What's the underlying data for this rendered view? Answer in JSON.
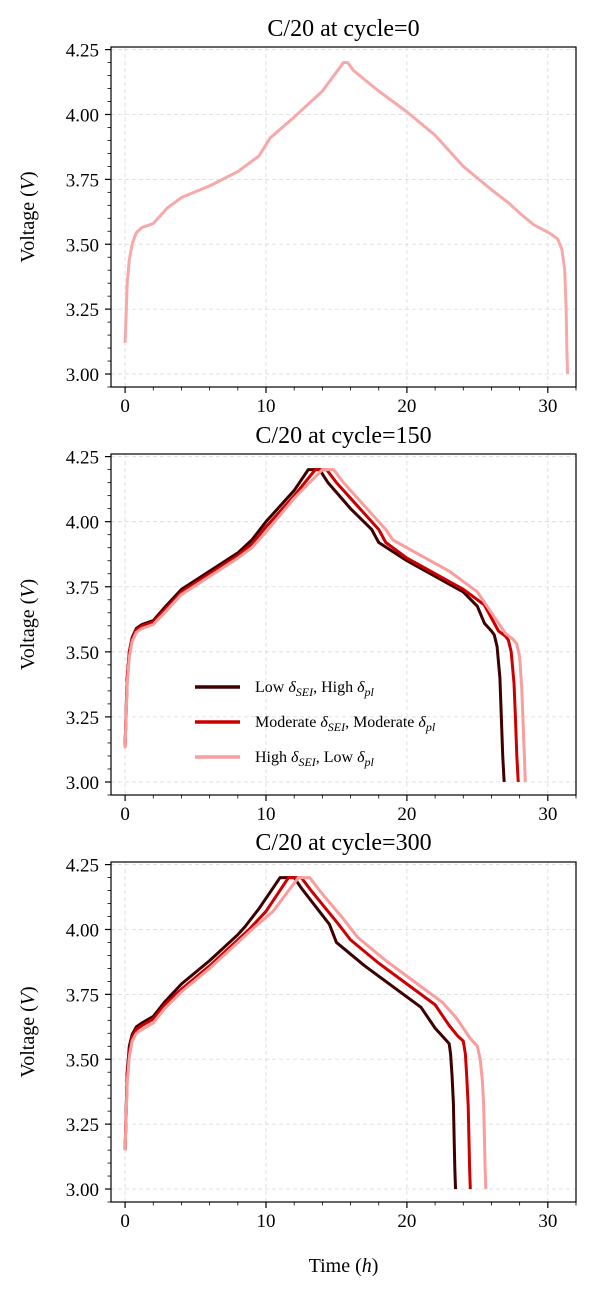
{
  "chart_data": [
    {
      "type": "line",
      "title": "C/20 at cycle=0",
      "xlabel": "",
      "ylabel": "Voltage (V)",
      "xlim": [
        -1,
        32
      ],
      "ylim": [
        2.95,
        4.26
      ],
      "xticks": [
        0,
        10,
        20,
        30
      ],
      "yticks": [
        3.0,
        3.25,
        3.5,
        3.75,
        4.0,
        4.25
      ],
      "ytick_labels": [
        "3.00",
        "3.25",
        "3.50",
        "3.75",
        "4.00",
        "4.25"
      ],
      "grid": true,
      "legend": null,
      "series": [
        {
          "color": "#f7a8a8",
          "x": [
            0,
            0.15,
            0.3,
            0.5,
            0.8,
            1.2,
            1.5,
            2.0,
            2.5,
            3.0,
            4.0,
            6.0,
            8.0,
            9.5,
            10.3,
            12.0,
            14.0,
            15.5,
            15.8,
            16.2,
            18.0,
            20.0,
            22.0,
            24.0,
            26.0,
            27.2,
            28.0,
            29.0,
            29.7,
            30.2,
            30.7,
            31.0,
            31.2,
            31.3,
            31.35,
            31.4
          ],
          "y": [
            3.12,
            3.35,
            3.44,
            3.5,
            3.545,
            3.565,
            3.57,
            3.58,
            3.61,
            3.64,
            3.68,
            3.725,
            3.78,
            3.84,
            3.91,
            3.99,
            4.09,
            4.2,
            4.2,
            4.17,
            4.09,
            4.01,
            3.92,
            3.8,
            3.71,
            3.66,
            3.62,
            3.575,
            3.555,
            3.54,
            3.52,
            3.48,
            3.4,
            3.25,
            3.1,
            3.0
          ]
        }
      ]
    },
    {
      "type": "line",
      "title": "C/20  at cycle=150",
      "xlabel": "",
      "ylabel": "Voltage (V)",
      "xlim": [
        -1,
        32
      ],
      "ylim": [
        2.95,
        4.26
      ],
      "xticks": [
        0,
        10,
        20,
        30
      ],
      "yticks": [
        3.0,
        3.25,
        3.5,
        3.75,
        4.0,
        4.25
      ],
      "ytick_labels": [
        "3.00",
        "3.25",
        "3.50",
        "3.75",
        "4.00",
        "4.25"
      ],
      "grid": true,
      "legend": {
        "position": "lower-center",
        "entries": [
          {
            "pre": "Low ",
            "sym1": "δ",
            "sub1": "SEI",
            "mid": ", High ",
            "sym2": "δ",
            "sub2": "pl"
          },
          {
            "pre": "Moderate ",
            "sym1": "δ",
            "sub1": "SEI",
            "mid": ", Moderate ",
            "sym2": "δ",
            "sub2": "pl"
          },
          {
            "pre": "High ",
            "sym1": "δ",
            "sub1": "SEI",
            "mid": ", Low ",
            "sym2": "δ",
            "sub2": "pl"
          }
        ]
      },
      "series": [
        {
          "color": "#3d0000",
          "x": [
            0,
            0.15,
            0.3,
            0.5,
            0.8,
            1.2,
            2.0,
            2.8,
            4.0,
            6.0,
            8.0,
            9.0,
            10.0,
            12.0,
            13.0,
            13.2,
            13.8,
            14.4,
            16.0,
            17.5,
            18.0,
            20.0,
            22.0,
            24.0,
            25.0,
            25.5,
            26.0,
            26.2,
            26.4,
            26.6,
            26.7,
            26.8,
            26.9
          ],
          "y": [
            3.14,
            3.4,
            3.5,
            3.555,
            3.59,
            3.605,
            3.62,
            3.67,
            3.74,
            3.81,
            3.88,
            3.93,
            4.0,
            4.12,
            4.2,
            4.2,
            4.2,
            4.15,
            4.05,
            3.97,
            3.92,
            3.85,
            3.79,
            3.73,
            3.675,
            3.61,
            3.58,
            3.565,
            3.52,
            3.4,
            3.25,
            3.1,
            3.0
          ]
        },
        {
          "color": "#cc0000",
          "x": [
            0,
            0.15,
            0.3,
            0.5,
            0.8,
            1.2,
            2.0,
            2.8,
            4.0,
            6.0,
            8.0,
            9.0,
            10.0,
            12.0,
            13.5,
            13.8,
            14.3,
            15.0,
            16.5,
            18.0,
            18.5,
            20.0,
            22.0,
            24.0,
            25.5,
            26.5,
            27.0,
            27.2,
            27.4,
            27.6,
            27.7,
            27.8,
            27.9
          ],
          "y": [
            3.14,
            3.4,
            3.5,
            3.55,
            3.585,
            3.6,
            3.615,
            3.66,
            3.73,
            3.8,
            3.87,
            3.915,
            3.98,
            4.1,
            4.2,
            4.2,
            4.2,
            4.15,
            4.06,
            3.97,
            3.92,
            3.86,
            3.8,
            3.74,
            3.68,
            3.58,
            3.56,
            3.545,
            3.5,
            3.38,
            3.25,
            3.1,
            3.0
          ]
        },
        {
          "color": "#f99d9d",
          "x": [
            0,
            0.15,
            0.3,
            0.5,
            0.8,
            1.2,
            2.0,
            2.8,
            4.0,
            6.0,
            8.0,
            9.0,
            10.0,
            12.0,
            14.0,
            14.3,
            14.8,
            15.5,
            17.0,
            18.5,
            19.0,
            21.0,
            23.0,
            25.0,
            26.0,
            27.0,
            27.5,
            27.8,
            28.0,
            28.15,
            28.25,
            28.35,
            28.4
          ],
          "y": [
            3.13,
            3.38,
            3.48,
            3.54,
            3.575,
            3.59,
            3.605,
            3.65,
            3.72,
            3.79,
            3.86,
            3.9,
            3.96,
            4.09,
            4.2,
            4.2,
            4.2,
            4.15,
            4.06,
            3.97,
            3.93,
            3.87,
            3.81,
            3.73,
            3.65,
            3.57,
            3.55,
            3.53,
            3.48,
            3.36,
            3.22,
            3.08,
            3.0
          ]
        }
      ]
    },
    {
      "type": "line",
      "title": "C/20  at cycle=300",
      "xlabel": "Time (h)",
      "ylabel": "Voltage (V)",
      "xlim": [
        -1,
        32
      ],
      "ylim": [
        2.95,
        4.26
      ],
      "xticks": [
        0,
        10,
        20,
        30
      ],
      "yticks": [
        3.0,
        3.25,
        3.5,
        3.75,
        4.0,
        4.25
      ],
      "ytick_labels": [
        "3.00",
        "3.25",
        "3.50",
        "3.75",
        "4.00",
        "4.25"
      ],
      "grid": true,
      "legend": null,
      "series": [
        {
          "color": "#3d0000",
          "x": [
            0,
            0.15,
            0.3,
            0.5,
            0.8,
            1.2,
            2.0,
            2.8,
            4.0,
            6.0,
            8.0,
            8.5,
            9.5,
            11.0,
            11.5,
            12.0,
            12.5,
            14.5,
            15.0,
            17.0,
            19.0,
            21.0,
            22.0,
            22.5,
            23.0,
            23.1,
            23.2,
            23.3,
            23.35,
            23.4,
            23.45
          ],
          "y": [
            3.15,
            3.45,
            3.55,
            3.595,
            3.625,
            3.64,
            3.665,
            3.72,
            3.79,
            3.88,
            3.98,
            4.01,
            4.08,
            4.2,
            4.2,
            4.2,
            4.16,
            4.02,
            3.95,
            3.86,
            3.78,
            3.7,
            3.62,
            3.59,
            3.56,
            3.52,
            3.44,
            3.33,
            3.2,
            3.08,
            3.0
          ]
        },
        {
          "color": "#cc0000",
          "x": [
            0,
            0.15,
            0.3,
            0.5,
            0.8,
            1.2,
            2.0,
            2.8,
            4.0,
            6.0,
            8.0,
            8.8,
            10.0,
            11.6,
            12.0,
            12.5,
            13.2,
            15.0,
            16.0,
            18.0,
            20.0,
            22.0,
            23.0,
            23.6,
            24.0,
            24.15,
            24.25,
            24.35,
            24.4,
            24.45,
            24.5
          ],
          "y": [
            3.15,
            3.43,
            3.53,
            3.585,
            3.615,
            3.63,
            3.655,
            3.71,
            3.77,
            3.86,
            3.96,
            4.0,
            4.07,
            4.2,
            4.2,
            4.2,
            4.15,
            4.03,
            3.96,
            3.87,
            3.79,
            3.71,
            3.63,
            3.59,
            3.57,
            3.52,
            3.43,
            3.32,
            3.2,
            3.08,
            3.0
          ]
        },
        {
          "color": "#f99d9d",
          "x": [
            0,
            0.15,
            0.3,
            0.5,
            0.8,
            1.2,
            2.0,
            2.8,
            4.0,
            6.0,
            8.0,
            9.0,
            10.5,
            12.3,
            12.6,
            13.1,
            13.8,
            15.5,
            16.5,
            18.5,
            20.5,
            22.5,
            23.5,
            24.5,
            25.0,
            25.2,
            25.35,
            25.45,
            25.5,
            25.55,
            25.6
          ],
          "y": [
            3.15,
            3.41,
            3.51,
            3.57,
            3.6,
            3.615,
            3.64,
            3.695,
            3.76,
            3.85,
            3.95,
            4.0,
            4.07,
            4.2,
            4.2,
            4.2,
            4.15,
            4.04,
            3.97,
            3.88,
            3.8,
            3.72,
            3.66,
            3.58,
            3.55,
            3.5,
            3.42,
            3.32,
            3.2,
            3.08,
            3.0
          ]
        }
      ]
    }
  ]
}
